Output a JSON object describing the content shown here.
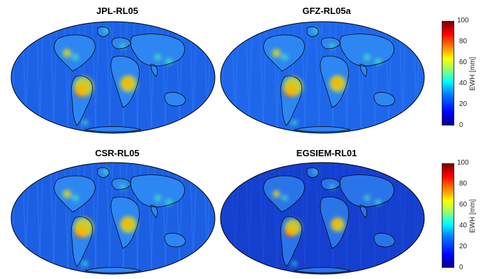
{
  "panels": [
    {
      "title": "JPL-RL05",
      "ocean": "#1d62e6"
    },
    {
      "title": "GFZ-RL05a",
      "ocean": "#1f67ea"
    },
    {
      "title": "CSR-RL05",
      "ocean": "#1c5fe3"
    },
    {
      "title": "EGSIEM-RL01",
      "ocean": "#1540cf"
    }
  ],
  "colorbar": {
    "label": "EWH [mm]",
    "ticks": [
      "100",
      "80",
      "60",
      "40",
      "20",
      "0"
    ]
  },
  "colors": {
    "high": "#ff2a00",
    "mid": "#f7e600",
    "lowmid": "#3fdcc0",
    "outline": "#000000"
  }
}
